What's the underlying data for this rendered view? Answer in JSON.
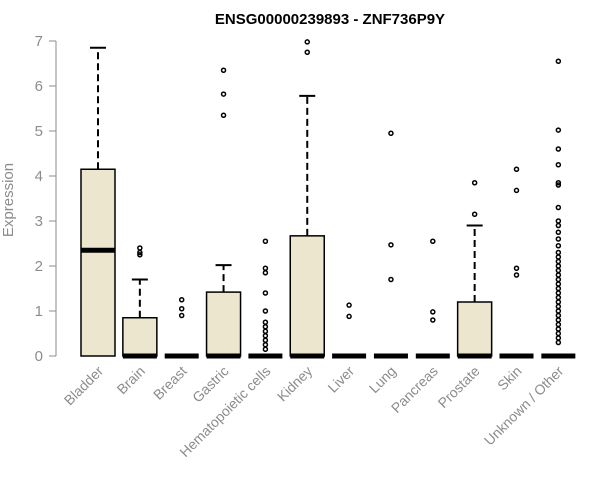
{
  "chart_data": {
    "type": "boxplot",
    "title": "ENSG00000239893 - ZNF736P9Y",
    "ylabel": "Expression",
    "xlabel": "",
    "ylim": [
      0,
      7
    ],
    "yticks": [
      0,
      1,
      2,
      3,
      4,
      5,
      6,
      7
    ],
    "categories": [
      "Bladder",
      "Brain",
      "Breast",
      "Gastric",
      "Hematopoietic cells",
      "Kidney",
      "Liver",
      "Lung",
      "Pancreas",
      "Prostate",
      "Skin",
      "Unknown / Other"
    ],
    "boxes": [
      {
        "q1": 0,
        "median": 2.35,
        "q3": 4.15,
        "whisker_low": 0,
        "whisker_high": 6.85,
        "outliers": []
      },
      {
        "q1": 0,
        "median": 0,
        "q3": 0.85,
        "whisker_low": 0,
        "whisker_high": 1.7,
        "outliers": [
          2.25,
          2.3,
          2.4
        ]
      },
      {
        "q1": 0,
        "median": 0,
        "q3": 0,
        "whisker_low": 0,
        "whisker_high": 0,
        "outliers": [
          0.9,
          1.05,
          1.25
        ]
      },
      {
        "q1": 0,
        "median": 0,
        "q3": 1.42,
        "whisker_low": 0,
        "whisker_high": 2.02,
        "outliers": [
          5.35,
          5.82,
          6.35
        ]
      },
      {
        "q1": 0,
        "median": 0,
        "q3": 0,
        "whisker_low": 0,
        "whisker_high": 0,
        "outliers": [
          0.15,
          0.25,
          0.35,
          0.45,
          0.55,
          0.65,
          0.75,
          1.0,
          1.4,
          1.85,
          1.95,
          2.55
        ]
      },
      {
        "q1": 0,
        "median": 0,
        "q3": 2.67,
        "whisker_low": 0,
        "whisker_high": 5.78,
        "outliers": [
          6.75,
          6.98
        ]
      },
      {
        "q1": 0,
        "median": 0,
        "q3": 0,
        "whisker_low": 0,
        "whisker_high": 0,
        "outliers": [
          0.88,
          1.13
        ]
      },
      {
        "q1": 0,
        "median": 0,
        "q3": 0,
        "whisker_low": 0,
        "whisker_high": 0,
        "outliers": [
          1.7,
          2.47,
          4.95
        ]
      },
      {
        "q1": 0,
        "median": 0,
        "q3": 0,
        "whisker_low": 0,
        "whisker_high": 0,
        "outliers": [
          0.8,
          0.98,
          2.55
        ]
      },
      {
        "q1": 0,
        "median": 0,
        "q3": 1.2,
        "whisker_low": 0,
        "whisker_high": 2.9,
        "outliers": [
          3.15,
          3.85
        ]
      },
      {
        "q1": 0,
        "median": 0,
        "q3": 0,
        "whisker_low": 0,
        "whisker_high": 0,
        "outliers": [
          1.8,
          1.95,
          3.68,
          4.15
        ]
      },
      {
        "q1": 0,
        "median": 0,
        "q3": 0,
        "whisker_low": 0,
        "whisker_high": 0,
        "outliers": [
          0.3,
          0.4,
          0.5,
          0.6,
          0.7,
          0.8,
          0.9,
          1.0,
          1.1,
          1.2,
          1.3,
          1.4,
          1.5,
          1.6,
          1.7,
          1.8,
          1.9,
          2.0,
          2.1,
          2.2,
          2.3,
          2.45,
          2.6,
          2.75,
          2.9,
          3.0,
          3.3,
          3.8,
          3.85,
          4.25,
          4.6,
          5.02,
          6.55
        ]
      }
    ],
    "colors": {
      "box_fill": "#ede6cf",
      "stroke": "#000000",
      "axis_text": "#8c8c8c"
    },
    "grid": false,
    "legend": "none"
  }
}
